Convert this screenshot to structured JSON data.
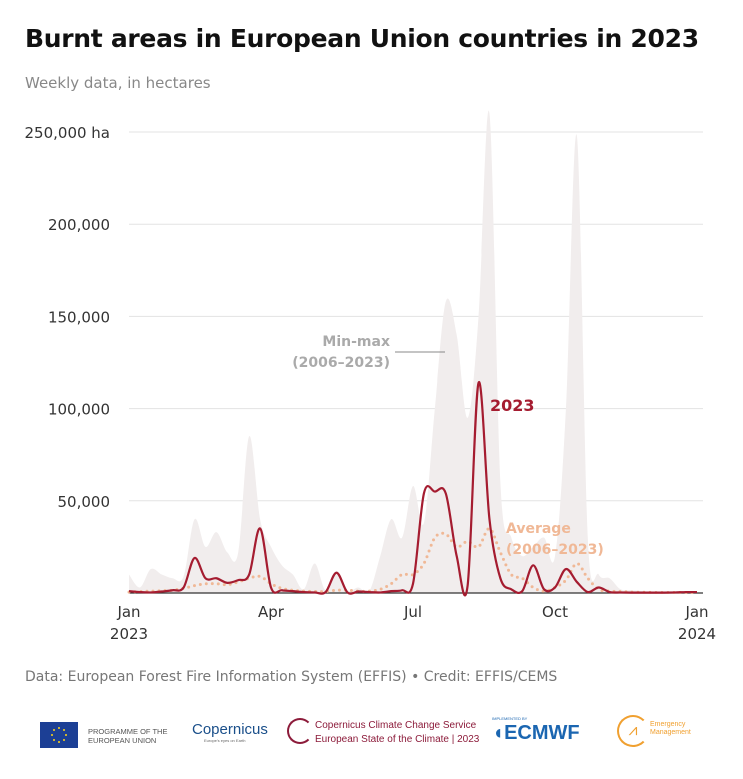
{
  "title": "Burnt areas in European Union countries in 2023",
  "subtitle": "Weekly data, in hectares",
  "source": "Data: European Forest Fire Information System (EFFIS) • Credit: EFFIS/CEMS",
  "logos": {
    "eu": "PROGRAMME OF THE EUROPEAN UNION",
    "copernicus": "Copernicus",
    "copernicus_tag": "Europe's eyes on Earth",
    "c3s_1": "Copernicus Climate Change Service",
    "c3s_2": "European State of the Climate | 2023",
    "ecmwf_tag": "IMPLEMENTED BY",
    "ecmwf": "ECMWF",
    "em": "Emergency Management"
  },
  "colors": {
    "line_2023": "#a51c30",
    "average": "#f0b896",
    "minmax": "#f1eded",
    "grid": "#e3e3e3"
  },
  "chart_data": {
    "type": "line",
    "title": "Burnt areas in European Union countries in 2023",
    "xlabel": "",
    "ylabel": "",
    "ylim": [
      0,
      250000
    ],
    "yticks": [
      {
        "v": 50000,
        "label": "50,000"
      },
      {
        "v": 100000,
        "label": "100,000"
      },
      {
        "v": 150000,
        "label": "150,000"
      },
      {
        "v": 200000,
        "label": "200,000"
      },
      {
        "v": 250000,
        "label": "250,000 ha"
      }
    ],
    "xticks": [
      {
        "week": 0,
        "label": "Jan",
        "label2": "2023"
      },
      {
        "week": 13,
        "label": "Apr",
        "label2": ""
      },
      {
        "week": 26,
        "label": "Jul",
        "label2": ""
      },
      {
        "week": 39,
        "label": "Oct",
        "label2": ""
      },
      {
        "week": 52,
        "label": "Jan",
        "label2": "2024"
      }
    ],
    "grid": true,
    "x_unit": "week of 2023",
    "series": [
      {
        "name": "2023",
        "label": "2023",
        "style": "solid",
        "values": [
          1000,
          500,
          300,
          800,
          1500,
          3000,
          19000,
          8000,
          8000,
          5500,
          7000,
          10000,
          35000,
          3000,
          1500,
          1000,
          500,
          300,
          500,
          11000,
          300,
          800,
          500,
          300,
          1000,
          1500,
          5000,
          54000,
          55000,
          54000,
          20000,
          4000,
          114000,
          40000,
          8000,
          2000,
          1000,
          15000,
          2000,
          3000,
          13000,
          6000,
          500,
          3000,
          500,
          300,
          200,
          200,
          200,
          200,
          300,
          500,
          500
        ]
      },
      {
        "name": "Average (2006–2023)",
        "label1": "Average",
        "label2": "(2006–2023)",
        "style": "dotted",
        "values": [
          500,
          800,
          1000,
          1200,
          1500,
          2500,
          4000,
          5000,
          5000,
          4500,
          6000,
          8000,
          9000,
          5000,
          2500,
          1500,
          1000,
          800,
          800,
          1500,
          1500,
          1000,
          1000,
          2000,
          5000,
          10000,
          10000,
          16000,
          30000,
          32000,
          25000,
          28000,
          25000,
          35000,
          22000,
          10000,
          8000,
          3000,
          1000,
          3000,
          7000,
          16000,
          8000,
          2000,
          1000,
          800,
          500,
          400,
          300,
          300,
          300,
          300,
          300
        ]
      },
      {
        "name": "Min-max (2006–2023)",
        "label1": "Min-max",
        "label2": "(2006–2023)",
        "style": "band",
        "values": [
          10000,
          3000,
          13000,
          10000,
          8000,
          9000,
          40000,
          25000,
          33000,
          22000,
          22000,
          85000,
          40000,
          25000,
          15000,
          10000,
          2000,
          16000,
          1500,
          12000,
          1500,
          3000,
          1000,
          20000,
          40000,
          30000,
          58000,
          38000,
          100000,
          158000,
          140000,
          95000,
          150000,
          260000,
          60000,
          30000,
          20000,
          25000,
          30000,
          20000,
          100000,
          248000,
          30000,
          10000,
          8000,
          2000,
          1500,
          1000,
          500,
          500,
          500,
          500,
          500
        ]
      }
    ]
  }
}
